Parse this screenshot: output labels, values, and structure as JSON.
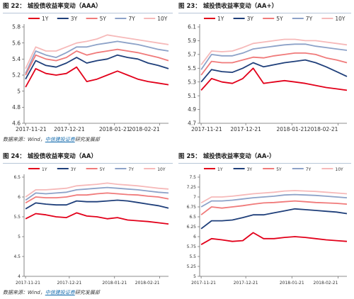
{
  "colors": {
    "1Y": "#e2001a",
    "3Y": "#1f3f7a",
    "5Y": "#f07a7a",
    "7Y": "#8da2c8",
    "10Y": "#f6b9b9"
  },
  "figures": [
    {
      "fig_label": "图 22：",
      "title": "城投债收益率变动（AAA）",
      "source_prefix": "数据来源：Wind，",
      "source_brand": "中信建投证券",
      "source_suffix": "研究发展部"
    },
    {
      "fig_label": "图 23：",
      "title": "城投债收益率变动（AA+）",
      "source_prefix": "",
      "source_brand": "",
      "source_suffix": ""
    },
    {
      "fig_label": "图 24：",
      "title": "城投债收益率变动（AA）",
      "source_prefix": "数据来源：Wind，",
      "source_brand": "中信建投证券",
      "source_suffix": "研究发展部"
    },
    {
      "fig_label": "图 25：",
      "title": "城投债收益率变动（AA-）",
      "source_prefix": "",
      "source_brand": "",
      "source_suffix": ""
    }
  ],
  "chart_data": [
    {
      "type": "line",
      "title": "城投债收益率变动（AAA）",
      "ylim": [
        4.6,
        5.8
      ],
      "yticks": [
        "4.6",
        "4.8",
        "5",
        "5.2",
        "5.4",
        "5.6",
        "5.8"
      ],
      "xticks": [
        "2017-11-21",
        "2017-12-21",
        "2018-01-21",
        "2018-02-21"
      ],
      "x": [
        "2017-11-21",
        "2017-11-28",
        "2017-12-05",
        "2017-12-12",
        "2017-12-19",
        "2017-12-26",
        "2018-01-02",
        "2018-01-09",
        "2018-01-16",
        "2018-01-23",
        "2018-01-30",
        "2018-02-06",
        "2018-02-13",
        "2018-02-20",
        "2018-02-27"
      ],
      "series": [
        {
          "name": "1Y",
          "values": [
            5.05,
            5.28,
            5.22,
            5.2,
            5.22,
            5.3,
            5.12,
            5.15,
            5.2,
            5.25,
            5.2,
            5.15,
            5.12,
            5.1,
            5.08
          ]
        },
        {
          "name": "3Y",
          "values": [
            5.15,
            5.38,
            5.32,
            5.3,
            5.35,
            5.42,
            5.35,
            5.38,
            5.4,
            5.45,
            5.42,
            5.4,
            5.35,
            5.32,
            5.28
          ]
        },
        {
          "name": "5Y",
          "values": [
            5.2,
            5.45,
            5.4,
            5.38,
            5.42,
            5.5,
            5.45,
            5.48,
            5.5,
            5.52,
            5.5,
            5.48,
            5.45,
            5.42,
            5.38
          ]
        },
        {
          "name": "7Y",
          "values": [
            5.22,
            5.5,
            5.45,
            5.42,
            5.48,
            5.55,
            5.55,
            5.58,
            5.6,
            5.62,
            5.6,
            5.58,
            5.55,
            5.52,
            5.5
          ]
        },
        {
          "name": "10Y",
          "values": [
            5.28,
            5.55,
            5.5,
            5.5,
            5.55,
            5.6,
            5.62,
            5.65,
            5.7,
            5.68,
            5.66,
            5.64,
            5.62,
            5.6,
            5.58
          ]
        }
      ],
      "legend": "top"
    },
    {
      "type": "line",
      "title": "城投债收益率变动（AA+）",
      "ylim": [
        4.7,
        6.1
      ],
      "yticks": [
        "4.7",
        "4.9",
        "5.1",
        "5.3",
        "5.5",
        "5.7",
        "5.9",
        "6.1"
      ],
      "xticks": [
        "2017-11-21",
        "2017-12-21",
        "2018-01-21",
        "2018-02-21"
      ],
      "x": [
        "2017-11-21",
        "2017-11-28",
        "2017-12-05",
        "2017-12-12",
        "2017-12-19",
        "2017-12-26",
        "2018-01-02",
        "2018-01-09",
        "2018-01-16",
        "2018-01-23",
        "2018-01-30",
        "2018-02-06",
        "2018-02-13",
        "2018-02-20",
        "2018-02-27"
      ],
      "series": [
        {
          "name": "1Y",
          "values": [
            5.18,
            5.35,
            5.3,
            5.28,
            5.35,
            5.5,
            5.28,
            5.3,
            5.32,
            5.3,
            5.28,
            5.25,
            5.22,
            5.2,
            5.18
          ]
        },
        {
          "name": "3Y",
          "values": [
            5.3,
            5.48,
            5.45,
            5.44,
            5.5,
            5.58,
            5.52,
            5.55,
            5.58,
            5.6,
            5.62,
            5.58,
            5.52,
            5.45,
            5.38
          ]
        },
        {
          "name": "5Y",
          "values": [
            5.4,
            5.6,
            5.58,
            5.58,
            5.62,
            5.66,
            5.65,
            5.68,
            5.7,
            5.72,
            5.72,
            5.7,
            5.65,
            5.62,
            5.58
          ]
        },
        {
          "name": "7Y",
          "values": [
            5.48,
            5.7,
            5.68,
            5.68,
            5.72,
            5.78,
            5.8,
            5.82,
            5.84,
            5.85,
            5.85,
            5.82,
            5.8,
            5.78,
            5.76
          ]
        },
        {
          "name": "10Y",
          "values": [
            5.55,
            5.75,
            5.74,
            5.75,
            5.8,
            5.86,
            5.88,
            5.9,
            5.92,
            5.92,
            5.9,
            5.9,
            5.88,
            5.86,
            5.84
          ]
        }
      ],
      "legend": "top"
    },
    {
      "type": "line",
      "title": "城投债收益率变动（AA）",
      "ylim": [
        4,
        6.5
      ],
      "yticks": [
        "4",
        "4.5",
        "5",
        "5.5",
        "6",
        "6.5"
      ],
      "xticks": [
        "2017-11-21",
        "2017-12-21",
        "2018-01-21",
        "2018-02-21"
      ],
      "x": [
        "2017-11-21",
        "2017-11-28",
        "2017-12-05",
        "2017-12-12",
        "2017-12-19",
        "2017-12-26",
        "2018-01-02",
        "2018-01-09",
        "2018-01-16",
        "2018-01-23",
        "2018-01-30",
        "2018-02-06",
        "2018-02-13",
        "2018-02-20",
        "2018-02-27"
      ],
      "series": [
        {
          "name": "1Y",
          "values": [
            5.45,
            5.58,
            5.55,
            5.5,
            5.48,
            5.6,
            5.52,
            5.5,
            5.45,
            5.48,
            5.42,
            5.4,
            5.38,
            5.35,
            5.32
          ]
        },
        {
          "name": "3Y",
          "values": [
            5.7,
            5.85,
            5.82,
            5.8,
            5.8,
            5.9,
            5.88,
            5.88,
            5.9,
            5.92,
            5.9,
            5.86,
            5.82,
            5.78,
            5.72
          ]
        },
        {
          "name": "5Y",
          "values": [
            5.85,
            6.0,
            5.98,
            5.98,
            6.0,
            6.05,
            6.05,
            6.08,
            6.1,
            6.08,
            6.06,
            6.05,
            6.02,
            6.0,
            5.95
          ]
        },
        {
          "name": "7Y",
          "values": [
            5.92,
            6.1,
            6.08,
            6.1,
            6.12,
            6.18,
            6.2,
            6.22,
            6.24,
            6.22,
            6.2,
            6.18,
            6.15,
            6.12,
            6.1
          ]
        },
        {
          "name": "10Y",
          "values": [
            6.0,
            6.18,
            6.18,
            6.2,
            6.22,
            6.28,
            6.3,
            6.32,
            6.35,
            6.32,
            6.3,
            6.28,
            6.25,
            6.22,
            6.2
          ]
        }
      ],
      "legend": "top"
    },
    {
      "type": "line",
      "title": "城投债收益率变动（AA-）",
      "ylim": [
        5,
        7.5
      ],
      "yticks": [
        "5",
        "5.25",
        "5.5",
        "5.75",
        "6",
        "6.25",
        "6.5",
        "6.75",
        "7",
        "7.25",
        "7.5"
      ],
      "xticks": [
        "2017-11-21",
        "2017-12-21",
        "2018-01-21",
        "2018-02-21"
      ],
      "x": [
        "2017-11-21",
        "2017-11-28",
        "2017-12-05",
        "2017-12-12",
        "2017-12-19",
        "2017-12-26",
        "2018-01-02",
        "2018-01-09",
        "2018-01-16",
        "2018-01-23",
        "2018-01-30",
        "2018-02-06",
        "2018-02-13",
        "2018-02-20",
        "2018-02-27"
      ],
      "series": [
        {
          "name": "1Y",
          "values": [
            5.8,
            5.95,
            5.92,
            5.88,
            5.9,
            6.1,
            5.95,
            5.95,
            5.98,
            6.0,
            5.98,
            5.95,
            5.92,
            5.9,
            5.88
          ]
        },
        {
          "name": "3Y",
          "values": [
            6.2,
            6.4,
            6.4,
            6.42,
            6.48,
            6.55,
            6.55,
            6.6,
            6.65,
            6.7,
            6.68,
            6.66,
            6.64,
            6.62,
            6.58
          ]
        },
        {
          "name": "5Y",
          "values": [
            6.55,
            6.75,
            6.72,
            6.75,
            6.78,
            6.82,
            6.85,
            6.86,
            6.88,
            6.9,
            6.88,
            6.86,
            6.85,
            6.84,
            6.82
          ]
        },
        {
          "name": "7Y",
          "values": [
            6.75,
            6.9,
            6.9,
            6.92,
            6.95,
            6.98,
            7.0,
            7.02,
            7.05,
            7.06,
            7.05,
            7.04,
            7.02,
            7.0,
            6.98
          ]
        },
        {
          "name": "10Y",
          "values": [
            6.85,
            7.0,
            7.0,
            7.02,
            7.05,
            7.08,
            7.1,
            7.12,
            7.15,
            7.16,
            7.15,
            7.14,
            7.12,
            7.1,
            7.08
          ]
        }
      ],
      "legend": "top"
    }
  ]
}
